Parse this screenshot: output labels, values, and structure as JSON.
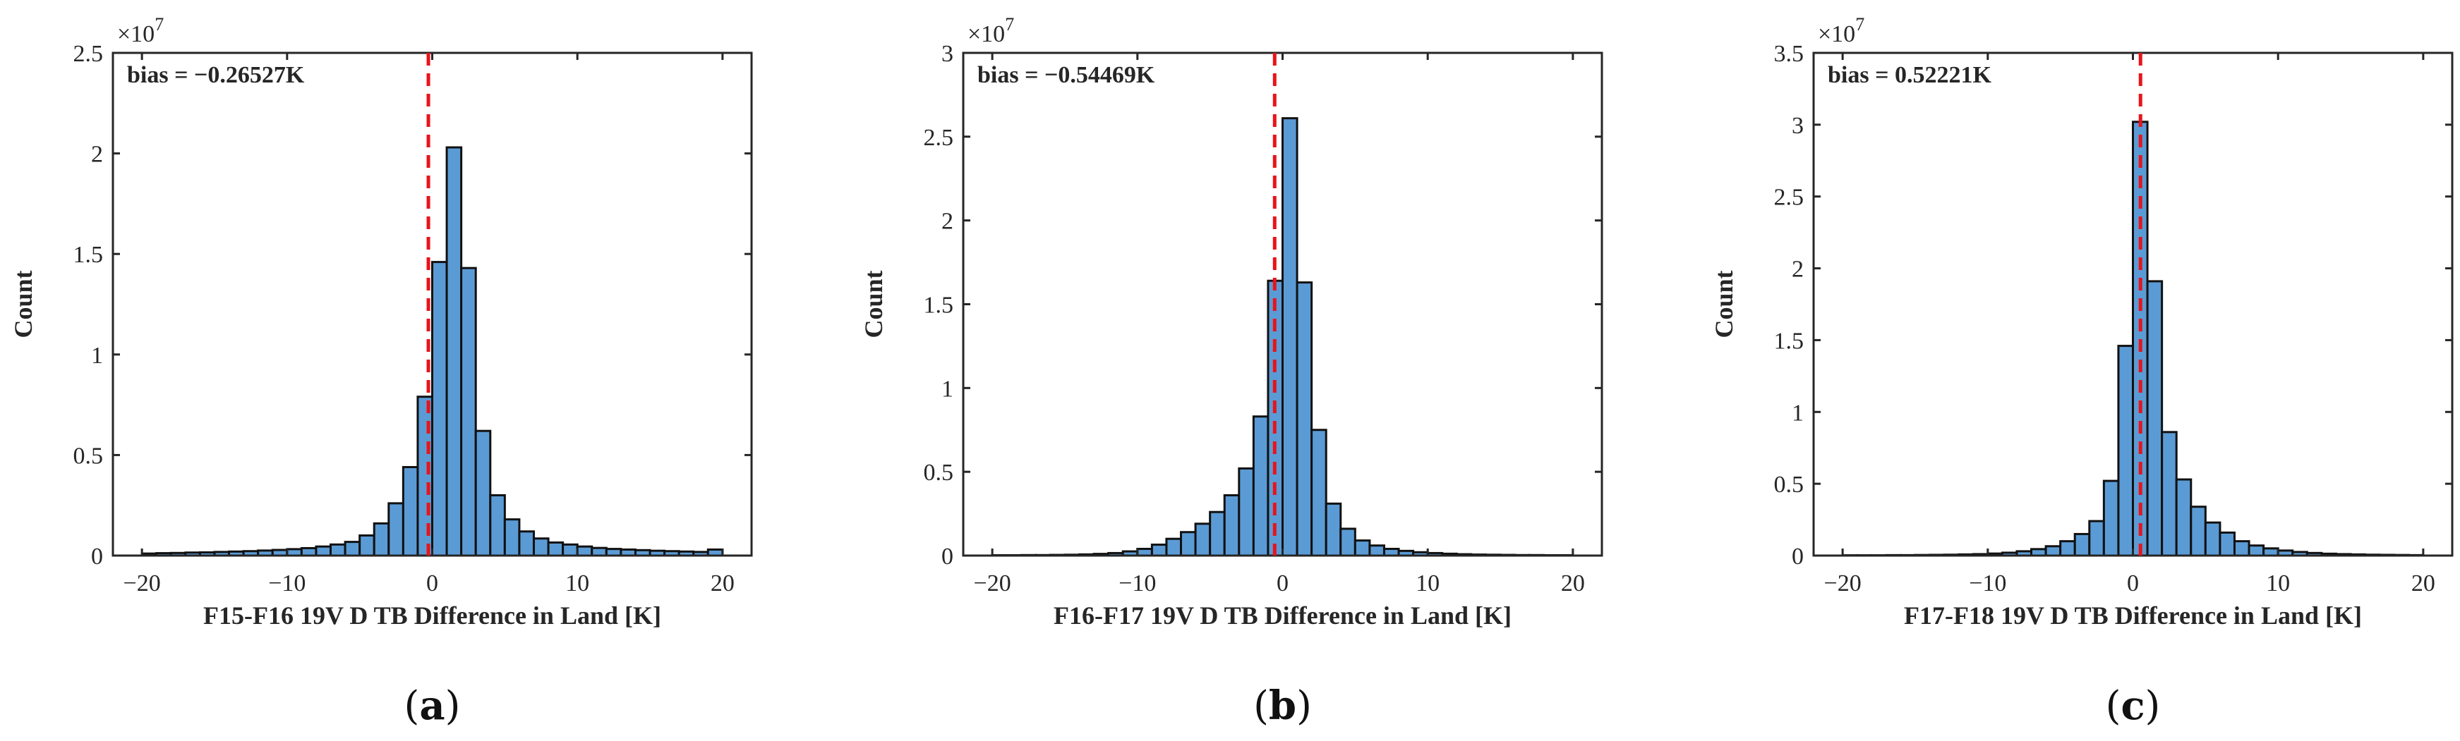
{
  "figure": {
    "bar_color": "#5B9BD5",
    "bar_edge_color": "#111111",
    "bias_line_color": "#E8141A",
    "axis_color": "#262626",
    "multiplier": "×10",
    "multiplier_exp": "7"
  },
  "chart_data": [
    {
      "type": "bar",
      "panel_label": "a",
      "title": "",
      "xlabel": "F15-F16 19V D TB Difference in Land [K]",
      "ylabel": "Count",
      "xlim": [
        -22,
        22
      ],
      "ylim": [
        0,
        2.5
      ],
      "xticks": [
        -20,
        -10,
        0,
        10,
        20
      ],
      "yticks": [
        0,
        0.5,
        1,
        1.5,
        2,
        2.5
      ],
      "ytick_labels": [
        "0",
        "0.5",
        "1",
        "1.5",
        "2",
        "2.5"
      ],
      "y_scale_factor": 10000000,
      "bias_text": "bias = −0.26527K",
      "bias_value": -0.26527,
      "bin_width": 1,
      "bin_centers": [
        -19.5,
        -18.5,
        -17.5,
        -16.5,
        -15.5,
        -14.5,
        -13.5,
        -12.5,
        -11.5,
        -10.5,
        -9.5,
        -8.5,
        -7.5,
        -6.5,
        -5.5,
        -4.5,
        -3.5,
        -2.5,
        -1.5,
        -0.5,
        0.5,
        1.5,
        2.5,
        3.5,
        4.5,
        5.5,
        6.5,
        7.5,
        8.5,
        9.5,
        10.5,
        11.5,
        12.5,
        13.5,
        14.5,
        15.5,
        16.5,
        17.5,
        18.5,
        19.5
      ],
      "values": [
        0.01,
        0.012,
        0.013,
        0.015,
        0.016,
        0.018,
        0.02,
        0.022,
        0.025,
        0.028,
        0.032,
        0.037,
        0.045,
        0.055,
        0.068,
        0.1,
        0.16,
        0.26,
        0.44,
        0.79,
        1.46,
        2.03,
        1.43,
        0.62,
        0.3,
        0.18,
        0.12,
        0.085,
        0.065,
        0.055,
        0.045,
        0.038,
        0.033,
        0.03,
        0.027,
        0.024,
        0.022,
        0.02,
        0.018,
        0.03
      ]
    },
    {
      "type": "bar",
      "panel_label": "b",
      "title": "",
      "xlabel": "F16-F17 19V D TB Difference in Land [K]",
      "ylabel": "Count",
      "xlim": [
        -22,
        22
      ],
      "ylim": [
        0,
        3
      ],
      "xticks": [
        -20,
        -10,
        0,
        10,
        20
      ],
      "yticks": [
        0,
        0.5,
        1,
        1.5,
        2,
        2.5,
        3
      ],
      "ytick_labels": [
        "0",
        "0.5",
        "1",
        "1.5",
        "2",
        "2.5",
        "3"
      ],
      "y_scale_factor": 10000000,
      "bias_text": "bias = −0.54469K",
      "bias_value": -0.54469,
      "bin_width": 1,
      "bin_centers": [
        -19.5,
        -18.5,
        -17.5,
        -16.5,
        -15.5,
        -14.5,
        -13.5,
        -12.5,
        -11.5,
        -10.5,
        -9.5,
        -8.5,
        -7.5,
        -6.5,
        -5.5,
        -4.5,
        -3.5,
        -2.5,
        -1.5,
        -0.5,
        0.5,
        1.5,
        2.5,
        3.5,
        4.5,
        5.5,
        6.5,
        7.5,
        8.5,
        9.5,
        10.5,
        11.5,
        12.5,
        13.5,
        14.5,
        15.5,
        16.5,
        17.5,
        18.5,
        19.5
      ],
      "values": [
        0.002,
        0.002,
        0.003,
        0.003,
        0.004,
        0.005,
        0.007,
        0.01,
        0.015,
        0.025,
        0.04,
        0.065,
        0.1,
        0.14,
        0.19,
        0.26,
        0.36,
        0.52,
        0.83,
        1.64,
        2.61,
        1.63,
        0.75,
        0.31,
        0.16,
        0.09,
        0.06,
        0.04,
        0.028,
        0.02,
        0.015,
        0.011,
        0.008,
        0.006,
        0.005,
        0.004,
        0.003,
        0.003,
        0.002,
        0.002
      ]
    },
    {
      "type": "bar",
      "panel_label": "c",
      "title": "",
      "xlabel": "F17-F18 19V D TB Difference in Land [K]",
      "ylabel": "Count",
      "xlim": [
        -22,
        22
      ],
      "ylim": [
        0,
        3.5
      ],
      "xticks": [
        -20,
        -10,
        0,
        10,
        20
      ],
      "yticks": [
        0,
        0.5,
        1,
        1.5,
        2,
        2.5,
        3,
        3.5
      ],
      "ytick_labels": [
        "0",
        "0.5",
        "1",
        "1.5",
        "2",
        "2.5",
        "3",
        "3.5"
      ],
      "y_scale_factor": 10000000,
      "bias_text": "bias = 0.52221K",
      "bias_value": 0.52221,
      "bin_width": 1,
      "bin_centers": [
        -19.5,
        -18.5,
        -17.5,
        -16.5,
        -15.5,
        -14.5,
        -13.5,
        -12.5,
        -11.5,
        -10.5,
        -9.5,
        -8.5,
        -7.5,
        -6.5,
        -5.5,
        -4.5,
        -3.5,
        -2.5,
        -1.5,
        -0.5,
        0.5,
        1.5,
        2.5,
        3.5,
        4.5,
        5.5,
        6.5,
        7.5,
        8.5,
        9.5,
        10.5,
        11.5,
        12.5,
        13.5,
        14.5,
        15.5,
        16.5,
        17.5,
        18.5,
        19.5
      ],
      "values": [
        0.002,
        0.002,
        0.002,
        0.003,
        0.003,
        0.004,
        0.005,
        0.006,
        0.008,
        0.01,
        0.014,
        0.02,
        0.03,
        0.045,
        0.065,
        0.1,
        0.15,
        0.24,
        0.52,
        1.46,
        3.02,
        1.91,
        0.86,
        0.53,
        0.34,
        0.23,
        0.16,
        0.1,
        0.07,
        0.05,
        0.035,
        0.025,
        0.018,
        0.013,
        0.01,
        0.008,
        0.006,
        0.005,
        0.004,
        0.003
      ]
    }
  ]
}
